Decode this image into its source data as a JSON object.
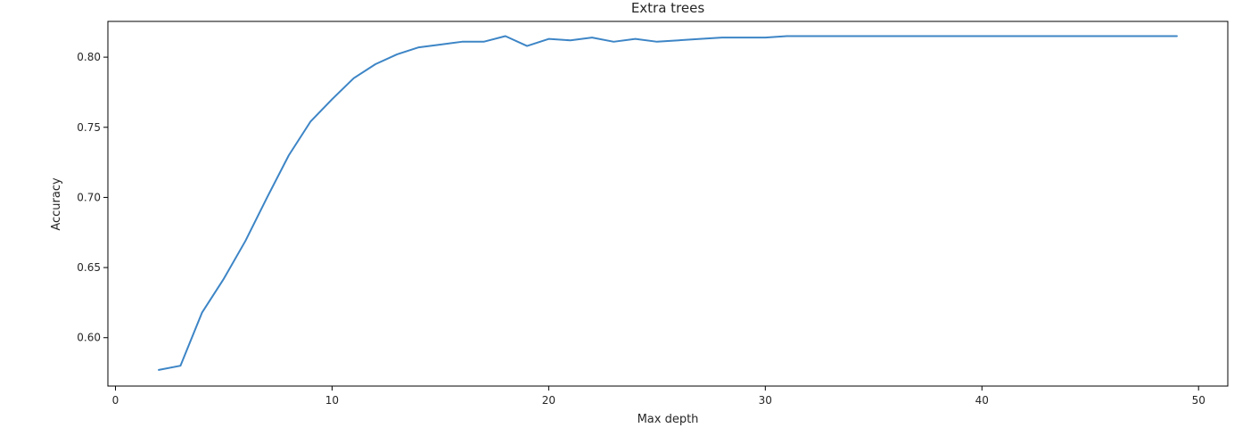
{
  "chart_data": {
    "type": "line",
    "title": "Extra trees",
    "xlabel": "Max depth",
    "ylabel": "Accuracy",
    "xlim": [
      -0.35,
      51.35
    ],
    "ylim": [
      0.5655,
      0.8255
    ],
    "xticks": [
      0,
      10,
      20,
      30,
      40,
      50
    ],
    "xtick_labels": [
      "0",
      "10",
      "20",
      "30",
      "40",
      "50"
    ],
    "yticks": [
      0.6,
      0.65,
      0.7,
      0.75,
      0.8
    ],
    "ytick_labels": [
      "0.60",
      "0.65",
      "0.70",
      "0.75",
      "0.80"
    ],
    "grid": false,
    "legend": "none",
    "line_color": "#3d85c6",
    "series": [
      {
        "x": [
          2,
          3,
          4,
          5,
          6,
          7,
          8,
          9,
          10,
          11,
          12,
          13,
          14,
          15,
          16,
          17,
          18,
          19,
          20,
          21,
          22,
          23,
          24,
          25,
          26,
          27,
          28,
          29,
          30,
          31,
          32,
          33,
          34,
          35,
          36,
          37,
          38,
          39,
          40,
          41,
          42,
          43,
          44,
          45,
          46,
          47,
          48,
          49
        ],
        "values": [
          0.577,
          0.58,
          0.618,
          0.642,
          0.669,
          0.7,
          0.73,
          0.754,
          0.77,
          0.785,
          0.795,
          0.802,
          0.807,
          0.809,
          0.811,
          0.811,
          0.815,
          0.808,
          0.813,
          0.812,
          0.814,
          0.811,
          0.813,
          0.811,
          0.812,
          0.813,
          0.814,
          0.814,
          0.814,
          0.815,
          0.815,
          0.815,
          0.815,
          0.815,
          0.815,
          0.815,
          0.815,
          0.815,
          0.815,
          0.815,
          0.815,
          0.815,
          0.815,
          0.815,
          0.815,
          0.815,
          0.815,
          0.815
        ]
      }
    ]
  }
}
